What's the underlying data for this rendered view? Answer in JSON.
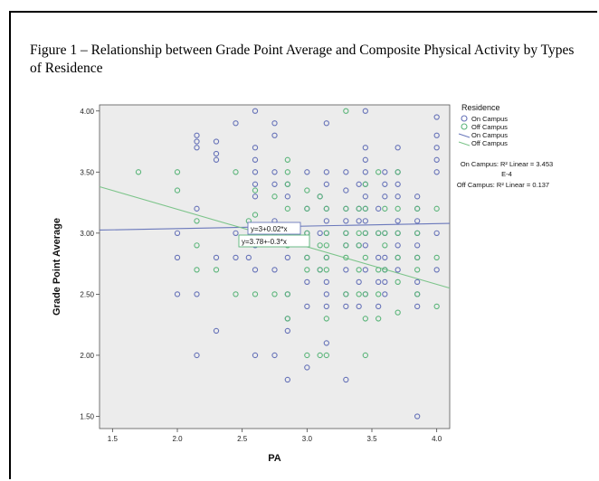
{
  "caption": "Figure 1 – Relationship between Grade Point Average and Composite Physical Activity by Types of Residence",
  "chart_data": {
    "type": "scatter",
    "title": "",
    "xlabel": "PA",
    "ylabel": "Grade Point Average",
    "xlim": [
      1.4,
      4.1
    ],
    "ylim": [
      1.4,
      4.05
    ],
    "xticks": [
      "1.5",
      "2.0",
      "2.5",
      "3.0",
      "3.5",
      "4.0"
    ],
    "xtick_values": [
      1.5,
      2.0,
      2.5,
      3.0,
      3.5,
      4.0
    ],
    "yticks": [
      "1.50",
      "2.00",
      "2.50",
      "3.00",
      "3.50",
      "4.00"
    ],
    "ytick_values": [
      1.5,
      2.0,
      2.5,
      3.0,
      3.5,
      4.0
    ],
    "grid": false,
    "legend_position": "right",
    "legend": {
      "title": "Residence",
      "entries": [
        "On Campus",
        "Off Campus",
        "On Campus",
        "Off Campus"
      ],
      "r2_on_line1": "On Campus: R² Linear = 3.453",
      "r2_on_line2": "E-4",
      "r2_off": "Off Campus: R² Linear = 0.137"
    },
    "fit_lines": [
      {
        "name": "On Campus",
        "equation": "y=3+0.02*x",
        "intercept": 3.0,
        "slope": 0.02,
        "color": "#6a78bb"
      },
      {
        "name": "Off Campus",
        "equation": "y=3.78+-0.3*x",
        "intercept": 3.78,
        "slope": -0.3,
        "color": "#7cc48a"
      }
    ],
    "series": [
      {
        "name": "On Campus",
        "color": "#6672b8",
        "points": [
          [
            2.0,
            2.5
          ],
          [
            2.0,
            2.8
          ],
          [
            2.0,
            3.0
          ],
          [
            2.15,
            3.8
          ],
          [
            2.15,
            3.75
          ],
          [
            2.15,
            3.7
          ],
          [
            2.15,
            3.2
          ],
          [
            2.15,
            2.5
          ],
          [
            2.15,
            2.0
          ],
          [
            2.3,
            3.75
          ],
          [
            2.3,
            3.65
          ],
          [
            2.3,
            3.6
          ],
          [
            2.3,
            2.8
          ],
          [
            2.3,
            2.2
          ],
          [
            2.45,
            3.9
          ],
          [
            2.45,
            3.0
          ],
          [
            2.45,
            2.8
          ],
          [
            2.55,
            2.8
          ],
          [
            2.6,
            4.0
          ],
          [
            2.6,
            3.7
          ],
          [
            2.6,
            3.6
          ],
          [
            2.6,
            3.5
          ],
          [
            2.6,
            3.4
          ],
          [
            2.6,
            3.3
          ],
          [
            2.6,
            2.9
          ],
          [
            2.6,
            2.7
          ],
          [
            2.6,
            2.0
          ],
          [
            2.75,
            3.9
          ],
          [
            2.75,
            3.8
          ],
          [
            2.75,
            3.5
          ],
          [
            2.75,
            3.4
          ],
          [
            2.75,
            3.1
          ],
          [
            2.75,
            3.0
          ],
          [
            2.75,
            2.7
          ],
          [
            2.75,
            2.0
          ],
          [
            2.85,
            3.4
          ],
          [
            2.85,
            3.3
          ],
          [
            2.85,
            3.0
          ],
          [
            2.85,
            2.8
          ],
          [
            2.85,
            2.5
          ],
          [
            2.85,
            2.3
          ],
          [
            2.85,
            2.2
          ],
          [
            2.85,
            1.8
          ],
          [
            3.0,
            3.5
          ],
          [
            3.0,
            3.2
          ],
          [
            3.0,
            3.0
          ],
          [
            3.0,
            2.8
          ],
          [
            3.0,
            2.6
          ],
          [
            3.0,
            2.4
          ],
          [
            3.0,
            1.9
          ],
          [
            3.1,
            3.3
          ],
          [
            3.1,
            3.0
          ],
          [
            3.1,
            2.7
          ],
          [
            3.15,
            3.9
          ],
          [
            3.15,
            3.5
          ],
          [
            3.15,
            3.4
          ],
          [
            3.15,
            3.2
          ],
          [
            3.15,
            3.1
          ],
          [
            3.15,
            3.0
          ],
          [
            3.15,
            2.8
          ],
          [
            3.15,
            2.6
          ],
          [
            3.15,
            2.5
          ],
          [
            3.15,
            2.4
          ],
          [
            3.15,
            2.1
          ],
          [
            3.3,
            3.5
          ],
          [
            3.3,
            3.35
          ],
          [
            3.3,
            3.2
          ],
          [
            3.3,
            3.1
          ],
          [
            3.3,
            3.0
          ],
          [
            3.3,
            2.9
          ],
          [
            3.3,
            2.7
          ],
          [
            3.3,
            2.5
          ],
          [
            3.3,
            2.4
          ],
          [
            3.3,
            1.8
          ],
          [
            3.4,
            3.4
          ],
          [
            3.4,
            3.2
          ],
          [
            3.4,
            3.1
          ],
          [
            3.4,
            2.9
          ],
          [
            3.4,
            2.6
          ],
          [
            3.4,
            2.4
          ],
          [
            3.45,
            4.0
          ],
          [
            3.45,
            3.7
          ],
          [
            3.45,
            3.6
          ],
          [
            3.45,
            3.5
          ],
          [
            3.45,
            3.4
          ],
          [
            3.45,
            3.3
          ],
          [
            3.45,
            3.2
          ],
          [
            3.45,
            3.1
          ],
          [
            3.45,
            3.0
          ],
          [
            3.45,
            2.9
          ],
          [
            3.45,
            2.7
          ],
          [
            3.45,
            2.5
          ],
          [
            3.55,
            3.2
          ],
          [
            3.55,
            3.0
          ],
          [
            3.55,
            2.8
          ],
          [
            3.55,
            2.6
          ],
          [
            3.55,
            2.4
          ],
          [
            3.6,
            3.5
          ],
          [
            3.6,
            3.4
          ],
          [
            3.6,
            3.3
          ],
          [
            3.6,
            3.0
          ],
          [
            3.6,
            2.8
          ],
          [
            3.6,
            2.7
          ],
          [
            3.6,
            2.6
          ],
          [
            3.6,
            2.5
          ],
          [
            3.7,
            3.7
          ],
          [
            3.7,
            3.5
          ],
          [
            3.7,
            3.4
          ],
          [
            3.7,
            3.3
          ],
          [
            3.7,
            3.1
          ],
          [
            3.7,
            3.0
          ],
          [
            3.7,
            2.9
          ],
          [
            3.7,
            2.8
          ],
          [
            3.7,
            2.7
          ],
          [
            3.85,
            3.3
          ],
          [
            3.85,
            3.2
          ],
          [
            3.85,
            3.1
          ],
          [
            3.85,
            3.0
          ],
          [
            3.85,
            2.9
          ],
          [
            3.85,
            2.8
          ],
          [
            3.85,
            2.6
          ],
          [
            3.85,
            2.5
          ],
          [
            3.85,
            2.4
          ],
          [
            3.85,
            1.5
          ],
          [
            4.0,
            3.95
          ],
          [
            4.0,
            3.8
          ],
          [
            4.0,
            3.7
          ],
          [
            4.0,
            3.6
          ],
          [
            4.0,
            3.5
          ],
          [
            4.0,
            3.0
          ],
          [
            4.0,
            2.7
          ]
        ]
      },
      {
        "name": "Off Campus",
        "color": "#5bb57a",
        "points": [
          [
            1.7,
            3.5
          ],
          [
            2.0,
            3.5
          ],
          [
            2.0,
            3.35
          ],
          [
            2.15,
            3.1
          ],
          [
            2.15,
            2.9
          ],
          [
            2.15,
            2.7
          ],
          [
            2.3,
            2.7
          ],
          [
            2.45,
            3.5
          ],
          [
            2.45,
            2.5
          ],
          [
            2.55,
            3.1
          ],
          [
            2.6,
            3.35
          ],
          [
            2.6,
            3.15
          ],
          [
            2.6,
            2.5
          ],
          [
            2.75,
            3.3
          ],
          [
            2.75,
            3.0
          ],
          [
            2.75,
            2.5
          ],
          [
            2.85,
            3.6
          ],
          [
            2.85,
            3.5
          ],
          [
            2.85,
            3.4
          ],
          [
            2.85,
            3.2
          ],
          [
            2.85,
            2.9
          ],
          [
            2.85,
            2.5
          ],
          [
            2.85,
            2.3
          ],
          [
            3.0,
            3.35
          ],
          [
            3.0,
            3.2
          ],
          [
            3.0,
            3.0
          ],
          [
            3.0,
            2.8
          ],
          [
            3.0,
            2.7
          ],
          [
            3.0,
            2.0
          ],
          [
            3.1,
            3.3
          ],
          [
            3.1,
            2.9
          ],
          [
            3.1,
            2.7
          ],
          [
            3.1,
            2.0
          ],
          [
            3.15,
            3.2
          ],
          [
            3.15,
            3.0
          ],
          [
            3.15,
            2.9
          ],
          [
            3.15,
            2.8
          ],
          [
            3.15,
            2.7
          ],
          [
            3.15,
            2.3
          ],
          [
            3.15,
            2.0
          ],
          [
            3.3,
            4.0
          ],
          [
            3.3,
            3.2
          ],
          [
            3.3,
            3.0
          ],
          [
            3.3,
            2.9
          ],
          [
            3.3,
            2.8
          ],
          [
            3.3,
            2.5
          ],
          [
            3.4,
            3.2
          ],
          [
            3.4,
            3.0
          ],
          [
            3.4,
            2.9
          ],
          [
            3.4,
            2.7
          ],
          [
            3.4,
            2.5
          ],
          [
            3.45,
            3.4
          ],
          [
            3.45,
            3.2
          ],
          [
            3.45,
            3.0
          ],
          [
            3.45,
            2.8
          ],
          [
            3.45,
            2.5
          ],
          [
            3.45,
            2.3
          ],
          [
            3.45,
            2.0
          ],
          [
            3.55,
            3.5
          ],
          [
            3.55,
            3.0
          ],
          [
            3.55,
            2.7
          ],
          [
            3.55,
            2.5
          ],
          [
            3.55,
            2.3
          ],
          [
            3.6,
            3.2
          ],
          [
            3.6,
            3.0
          ],
          [
            3.6,
            2.9
          ],
          [
            3.6,
            2.7
          ],
          [
            3.7,
            3.5
          ],
          [
            3.7,
            3.2
          ],
          [
            3.7,
            3.0
          ],
          [
            3.7,
            2.8
          ],
          [
            3.7,
            2.6
          ],
          [
            3.7,
            2.35
          ],
          [
            3.85,
            3.2
          ],
          [
            3.85,
            3.0
          ],
          [
            3.85,
            2.8
          ],
          [
            3.85,
            2.7
          ],
          [
            3.85,
            2.5
          ],
          [
            4.0,
            3.2
          ],
          [
            4.0,
            2.8
          ],
          [
            4.0,
            2.4
          ]
        ]
      }
    ]
  }
}
